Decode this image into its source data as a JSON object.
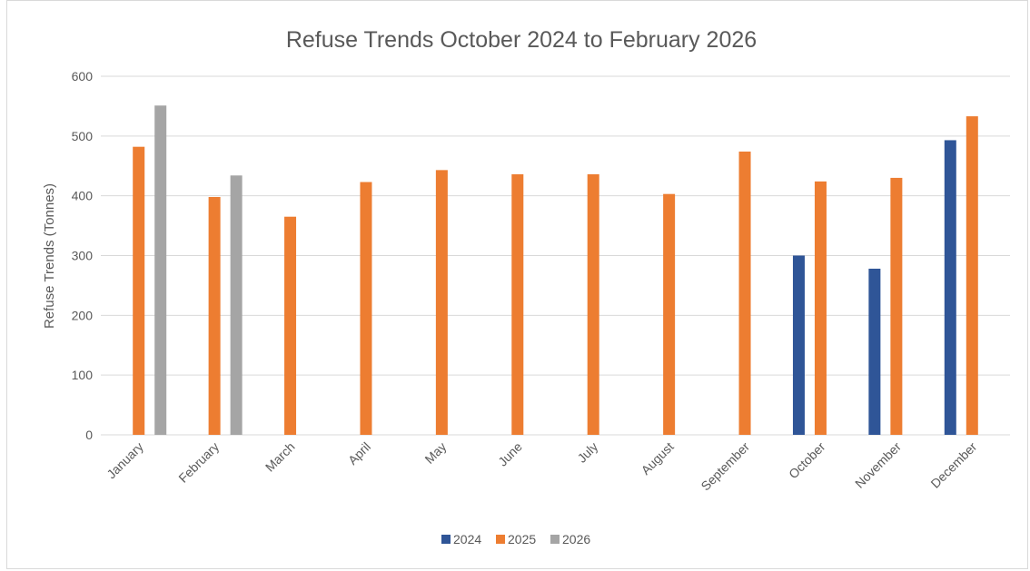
{
  "chart_data": {
    "type": "bar",
    "title": "Refuse Trends October 2024 to February 2026",
    "xlabel": "",
    "ylabel": "Refuse Trends (Tonnes)",
    "ylim": [
      0,
      600
    ],
    "yticks": [
      "0",
      "100",
      "200",
      "300",
      "400",
      "500",
      "600"
    ],
    "grid": true,
    "legend_position": "bottom",
    "categories": [
      "January",
      "February",
      "March",
      "April",
      "May",
      "June",
      "July",
      "August",
      "September",
      "October",
      "November",
      "December"
    ],
    "series": [
      {
        "name": "2024",
        "color": "#2f5597",
        "values": [
          null,
          null,
          null,
          null,
          null,
          null,
          null,
          null,
          null,
          300,
          278,
          493
        ]
      },
      {
        "name": "2025",
        "color": "#ed7d31",
        "values": [
          482,
          398,
          365,
          423,
          443,
          436,
          436,
          403,
          474,
          424,
          430,
          533
        ]
      },
      {
        "name": "2026",
        "color": "#a5a5a5",
        "values": [
          551,
          434,
          null,
          null,
          null,
          null,
          null,
          null,
          null,
          null,
          null,
          null
        ]
      }
    ]
  }
}
